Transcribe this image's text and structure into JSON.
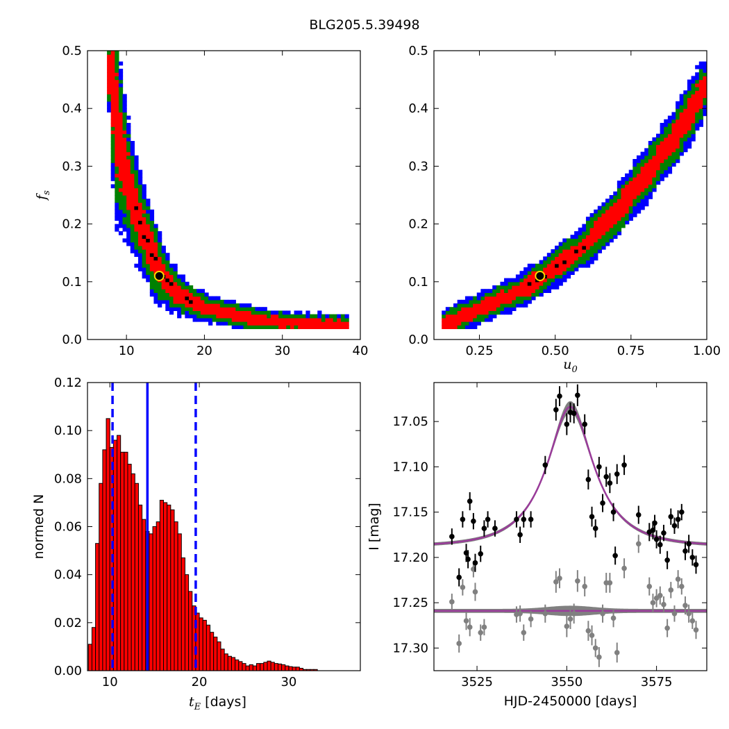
{
  "figure": {
    "title": "BLG205.5.39498"
  },
  "colors": {
    "sigma1": "#000000",
    "sigma2": "#ff0000",
    "sigma3": "#008000",
    "sigma4": "#0000ff",
    "hist_fill": "#ff0000",
    "vline": "#0000ff",
    "model": "#9a3b9a",
    "band": "#808080"
  },
  "chart_data": [
    {
      "id": "fs-vs-tE",
      "type": "heatmap",
      "ylabel": "f_s",
      "xlim": [
        5,
        40
      ],
      "ylim": [
        0,
        0.5
      ],
      "xticks": [
        10,
        20,
        30,
        40
      ],
      "yticks": [
        0.0,
        0.1,
        0.2,
        0.3,
        0.4,
        0.5
      ],
      "xtick_labels": [
        "10",
        "20",
        "30",
        "40"
      ],
      "ytick_labels": [
        "0.0",
        "0.1",
        "0.2",
        "0.3",
        "0.4",
        "0.5"
      ],
      "ridge_x": [
        8,
        8.5,
        9,
        10,
        11,
        12,
        13,
        14,
        15,
        16,
        17,
        18,
        19,
        20,
        22,
        24,
        26,
        28,
        30,
        33,
        36,
        38
      ],
      "ridge_y": [
        0.46,
        0.4,
        0.35,
        0.285,
        0.235,
        0.195,
        0.16,
        0.128,
        0.104,
        0.088,
        0.076,
        0.068,
        0.062,
        0.056,
        0.049,
        0.043,
        0.037,
        0.033,
        0.03,
        0.028,
        0.027,
        0.026
      ],
      "best_fit": {
        "x": 14.2,
        "y": 0.11
      }
    },
    {
      "id": "fs-vs-u0",
      "type": "heatmap",
      "xlabel": "u_0",
      "xlim": [
        0.1,
        1.0
      ],
      "ylim": [
        0,
        0.5
      ],
      "xticks": [
        0.25,
        0.5,
        0.75,
        1.0
      ],
      "yticks": [
        0.0,
        0.1,
        0.2,
        0.3,
        0.4,
        0.5
      ],
      "xtick_labels": [
        "0.25",
        "0.50",
        "0.75",
        "1.00"
      ],
      "ytick_labels": [
        "0.0",
        "0.1",
        "0.2",
        "0.3",
        "0.4",
        "0.5"
      ],
      "ridge_x": [
        0.13,
        0.2,
        0.3,
        0.4,
        0.5,
        0.6,
        0.7,
        0.8,
        0.9,
        1.0
      ],
      "ridge_y": [
        0.025,
        0.042,
        0.065,
        0.089,
        0.125,
        0.165,
        0.22,
        0.285,
        0.355,
        0.44
      ],
      "best_fit": {
        "x": 0.45,
        "y": 0.11
      }
    },
    {
      "id": "tE-histogram",
      "type": "bar",
      "xlabel": "t_E",
      "xlabel_suffix": " [days]",
      "ylabel": "normed N",
      "xlim": [
        7.5,
        38
      ],
      "ylim": [
        0,
        0.12
      ],
      "xticks": [
        10,
        20,
        30
      ],
      "yticks": [
        0.0,
        0.02,
        0.04,
        0.06,
        0.08,
        0.1,
        0.12
      ],
      "xtick_labels": [
        "10",
        "20",
        "30"
      ],
      "ytick_labels": [
        "0.00",
        "0.02",
        "0.04",
        "0.06",
        "0.08",
        "0.10",
        "0.12"
      ],
      "bin_start": 7.6,
      "bin_width": 0.4,
      "values": [
        0.011,
        0.018,
        0.053,
        0.078,
        0.092,
        0.105,
        0.093,
        0.096,
        0.098,
        0.091,
        0.091,
        0.086,
        0.082,
        0.078,
        0.069,
        0.063,
        0.058,
        0.057,
        0.06,
        0.062,
        0.071,
        0.07,
        0.069,
        0.067,
        0.062,
        0.057,
        0.047,
        0.04,
        0.033,
        0.027,
        0.024,
        0.022,
        0.021,
        0.019,
        0.016,
        0.014,
        0.012,
        0.009,
        0.007,
        0.006,
        0.0055,
        0.0045,
        0.0038,
        0.003,
        0.002,
        0.0025,
        0.002,
        0.003,
        0.003,
        0.0035,
        0.004,
        0.0035,
        0.003,
        0.0028,
        0.0025,
        0.002,
        0.0017,
        0.0015,
        0.0015,
        0.001,
        0.0005,
        0.0005,
        0.0005,
        0.0005
      ],
      "vlines": [
        {
          "x": 10.3,
          "style": "dashed"
        },
        {
          "x": 14.2,
          "style": "solid"
        },
        {
          "x": 19.6,
          "style": "dashed"
        }
      ]
    },
    {
      "id": "light-curve",
      "type": "scatter",
      "xlabel": "HJD-2450000 [days]",
      "ylabel": "I [mag]",
      "xlim": [
        3513,
        3589
      ],
      "ylim": [
        17.325,
        17.007
      ],
      "y_inverted": true,
      "xticks": [
        3525,
        3550,
        3575
      ],
      "yticks": [
        17.05,
        17.1,
        17.15,
        17.2,
        17.25,
        17.3
      ],
      "xtick_labels": [
        "3525",
        "3550",
        "3575"
      ],
      "ytick_labels": [
        "17.05",
        "17.10",
        "17.15",
        "17.20",
        "17.25",
        "17.30"
      ],
      "model": {
        "t0": 3551,
        "tE": 14.2,
        "u0": 0.45,
        "fs": 0.11,
        "I_base": 17.188
      },
      "residual_baseline": 17.259,
      "series": [
        {
          "color": "#000000",
          "x": [
            3518,
            3520,
            3521,
            3522,
            3522.5,
            3523,
            3524,
            3524.5,
            3526,
            3527,
            3528,
            3530,
            3536,
            3537,
            3538,
            3540,
            3544,
            3547,
            3548,
            3550,
            3551,
            3552,
            3553,
            3555,
            3556,
            3557,
            3558,
            3559,
            3560,
            3561,
            3562,
            3563,
            3563.5,
            3564,
            3566,
            3570,
            3573,
            3574,
            3574.5,
            3575,
            3576,
            3577,
            3578,
            3579,
            3580,
            3581,
            3582,
            3583,
            3584,
            3585,
            3586
          ],
          "y": [
            17.177,
            17.222,
            17.158,
            17.195,
            17.202,
            17.138,
            17.16,
            17.206,
            17.196,
            17.168,
            17.158,
            17.168,
            17.158,
            17.175,
            17.158,
            17.158,
            17.098,
            17.037,
            17.022,
            17.053,
            17.04,
            17.041,
            17.021,
            17.053,
            17.114,
            17.155,
            17.168,
            17.1,
            17.14,
            17.111,
            17.118,
            17.15,
            17.198,
            17.108,
            17.098,
            17.153,
            17.172,
            17.17,
            17.162,
            17.18,
            17.186,
            17.173,
            17.203,
            17.155,
            17.165,
            17.158,
            17.15,
            17.193,
            17.185,
            17.2,
            17.208
          ],
          "yerr": [
            0.009,
            0.01,
            0.009,
            0.01,
            0.01,
            0.01,
            0.009,
            0.01,
            0.009,
            0.009,
            0.009,
            0.009,
            0.009,
            0.009,
            0.009,
            0.009,
            0.01,
            0.012,
            0.011,
            0.012,
            0.011,
            0.011,
            0.012,
            0.011,
            0.011,
            0.011,
            0.01,
            0.011,
            0.01,
            0.011,
            0.011,
            0.01,
            0.01,
            0.011,
            0.011,
            0.01,
            0.01,
            0.01,
            0.009,
            0.01,
            0.01,
            0.009,
            0.01,
            0.009,
            0.009,
            0.01,
            0.009,
            0.01,
            0.01,
            0.009,
            0.01
          ]
        },
        {
          "color": "#808080",
          "x": [
            3518,
            3520,
            3521,
            3522,
            3523,
            3524,
            3524.5,
            3526,
            3527,
            3536,
            3537,
            3538,
            3540,
            3544,
            3547,
            3548,
            3550,
            3551,
            3552,
            3553,
            3555,
            3556,
            3557,
            3558,
            3559,
            3560,
            3561,
            3562,
            3563,
            3564,
            3566,
            3570,
            3573,
            3574,
            3575,
            3576,
            3577,
            3578,
            3579,
            3580,
            3581,
            3582,
            3583,
            3584,
            3585,
            3586
          ],
          "y": [
            17.249,
            17.295,
            17.233,
            17.27,
            17.277,
            17.213,
            17.238,
            17.283,
            17.277,
            17.263,
            17.262,
            17.283,
            17.268,
            17.262,
            17.227,
            17.223,
            17.276,
            17.268,
            17.262,
            17.226,
            17.232,
            17.281,
            17.286,
            17.3,
            17.31,
            17.262,
            17.228,
            17.228,
            17.267,
            17.305,
            17.212,
            17.185,
            17.232,
            17.25,
            17.245,
            17.242,
            17.252,
            17.278,
            17.236,
            17.262,
            17.224,
            17.232,
            17.253,
            17.262,
            17.27,
            17.28
          ],
          "yerr": [
            0.009,
            0.01,
            0.009,
            0.01,
            0.01,
            0.009,
            0.01,
            0.009,
            0.009,
            0.009,
            0.009,
            0.009,
            0.009,
            0.01,
            0.012,
            0.011,
            0.012,
            0.011,
            0.011,
            0.012,
            0.011,
            0.011,
            0.011,
            0.01,
            0.011,
            0.01,
            0.011,
            0.011,
            0.01,
            0.011,
            0.011,
            0.01,
            0.01,
            0.01,
            0.01,
            0.01,
            0.009,
            0.01,
            0.009,
            0.009,
            0.01,
            0.009,
            0.01,
            0.01,
            0.009,
            0.01
          ]
        }
      ]
    }
  ]
}
